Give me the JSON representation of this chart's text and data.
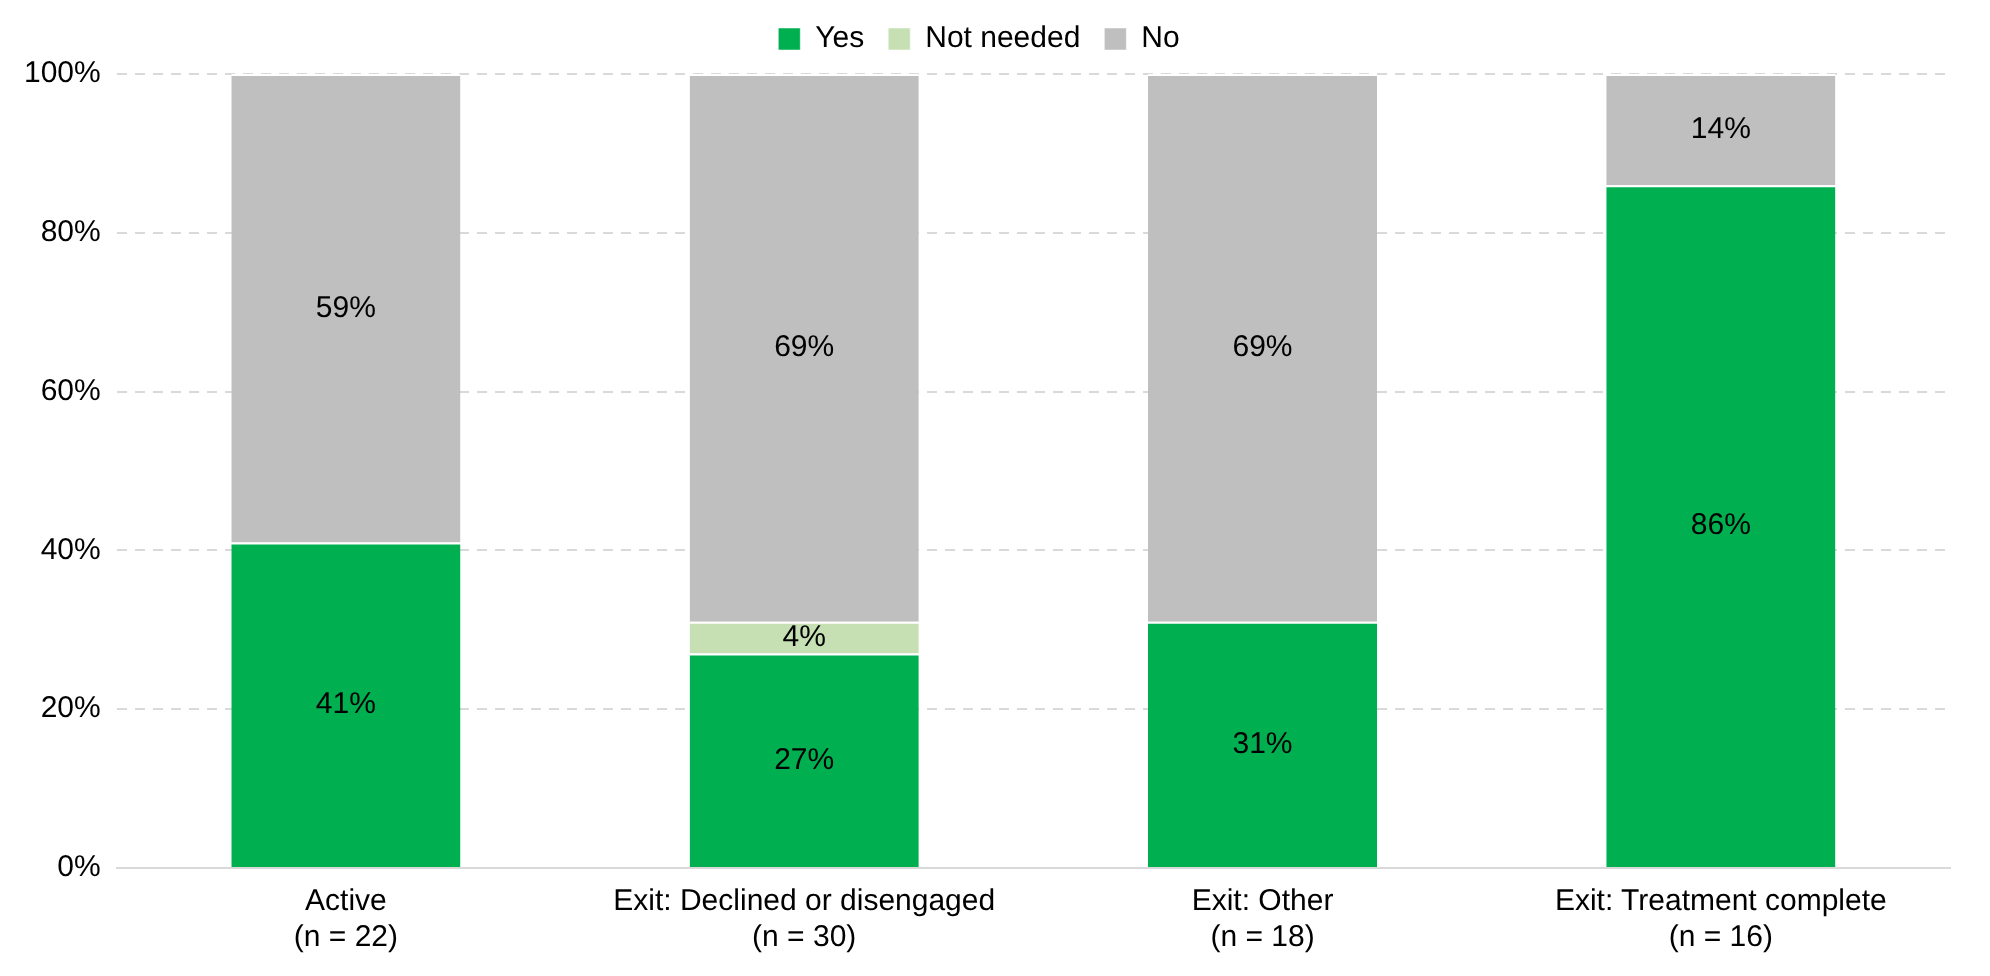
{
  "chart_data": {
    "type": "bar",
    "stacked": true,
    "categories": [
      "Active\n(n = 22)",
      "Exit: Declined or disengaged\n(n = 30)",
      "Exit: Other\n(n = 18)",
      "Exit: Treatment complete\n(n = 16)"
    ],
    "series": [
      {
        "name": "Yes",
        "color": "#00b050",
        "values": [
          41,
          27,
          31,
          86
        ],
        "value_labels": [
          "41%",
          "27%",
          "31%",
          "86%"
        ]
      },
      {
        "name": "Not needed",
        "color": "#c6e0b4",
        "values": [
          null,
          4,
          null,
          null
        ],
        "value_labels": [
          null,
          "4%",
          null,
          null
        ]
      },
      {
        "name": "No",
        "color": "#bfbfbf",
        "values": [
          59,
          69,
          69,
          14
        ],
        "value_labels": [
          "59%",
          "69%",
          "69%",
          "14%"
        ]
      }
    ],
    "ylim": [
      0,
      100
    ],
    "yticks": [
      {
        "value": 0,
        "label": "0%"
      },
      {
        "value": 20,
        "label": "20%"
      },
      {
        "value": 40,
        "label": "40%"
      },
      {
        "value": 60,
        "label": "60%"
      },
      {
        "value": 80,
        "label": "80%"
      },
      {
        "value": 100,
        "label": "100%"
      }
    ],
    "grid": "y",
    "legend": "top"
  }
}
